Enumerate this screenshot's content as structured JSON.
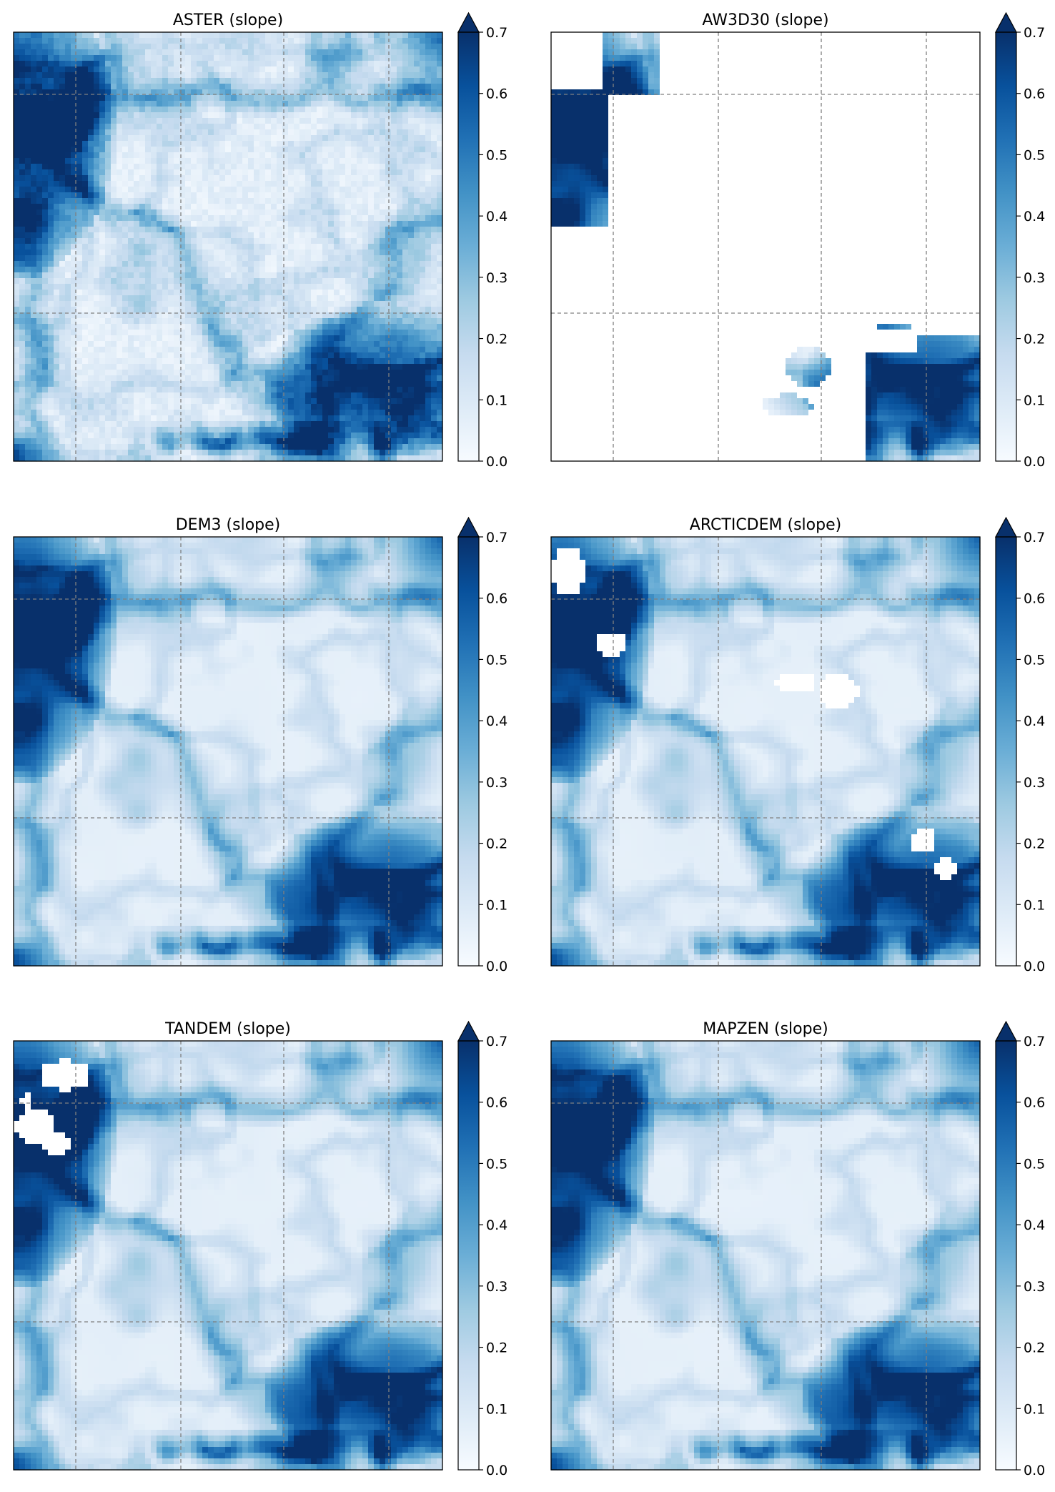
{
  "figure": {
    "layout": "3x2 grid of slope maps",
    "colormap": [
      "#f7fbff",
      "#deebf7",
      "#c6dbef",
      "#9ecae1",
      "#6baed6",
      "#4292c6",
      "#2171b5",
      "#08519c",
      "#08306b"
    ],
    "frame_color": "#000000",
    "grid_line_color": "#808080",
    "grid_line_style": "dashed",
    "nodata_color": "#ffffff"
  },
  "chart_data": [
    {
      "type": "heatmap",
      "title": "ASTER (slope)",
      "colorbar": {
        "ticks": [
          "0.0",
          "0.1",
          "0.2",
          "0.3",
          "0.4",
          "0.5",
          "0.6",
          "0.7"
        ],
        "range": [
          0,
          0.7
        ],
        "extend": "max"
      },
      "grid": true,
      "nodata_regions": "none"
    },
    {
      "type": "heatmap",
      "title": "AW3D30 (slope)",
      "colorbar": {
        "ticks": [
          "0.0",
          "0.1",
          "0.2",
          "0.3",
          "0.4",
          "0.5",
          "0.6",
          "0.7"
        ],
        "range": [
          0,
          0.7
        ],
        "extend": "max"
      },
      "grid": true,
      "nodata_regions": "most of the tile is no-data (white); valid data only in the upper-left corner and the lower-right corner"
    },
    {
      "type": "heatmap",
      "title": "DEM3 (slope)",
      "colorbar": {
        "ticks": [
          "0.0",
          "0.1",
          "0.2",
          "0.3",
          "0.4",
          "0.5",
          "0.6",
          "0.7"
        ],
        "range": [
          0,
          0.7
        ],
        "extend": "max"
      },
      "grid": true,
      "nodata_regions": "none"
    },
    {
      "type": "heatmap",
      "title": "ARCTICDEM (slope)",
      "colorbar": {
        "ticks": [
          "0.0",
          "0.1",
          "0.2",
          "0.3",
          "0.4",
          "0.5",
          "0.6",
          "0.7"
        ],
        "range": [
          0,
          0.7
        ],
        "extend": "max"
      },
      "grid": true,
      "nodata_regions": "small white holes in the upper-left, centre and lower-right"
    },
    {
      "type": "heatmap",
      "title": "TANDEM (slope)",
      "colorbar": {
        "ticks": [
          "0.0",
          "0.1",
          "0.2",
          "0.3",
          "0.4",
          "0.5",
          "0.6",
          "0.7"
        ],
        "range": [
          0,
          0.7
        ],
        "extend": "max"
      },
      "grid": true,
      "nodata_regions": "small white holes in the upper-left"
    },
    {
      "type": "heatmap",
      "title": "MAPZEN (slope)",
      "colorbar": {
        "ticks": [
          "0.0",
          "0.1",
          "0.2",
          "0.3",
          "0.4",
          "0.5",
          "0.6",
          "0.7"
        ],
        "range": [
          0,
          0.7
        ],
        "extend": "max"
      },
      "grid": true,
      "nodata_regions": "none"
    }
  ]
}
